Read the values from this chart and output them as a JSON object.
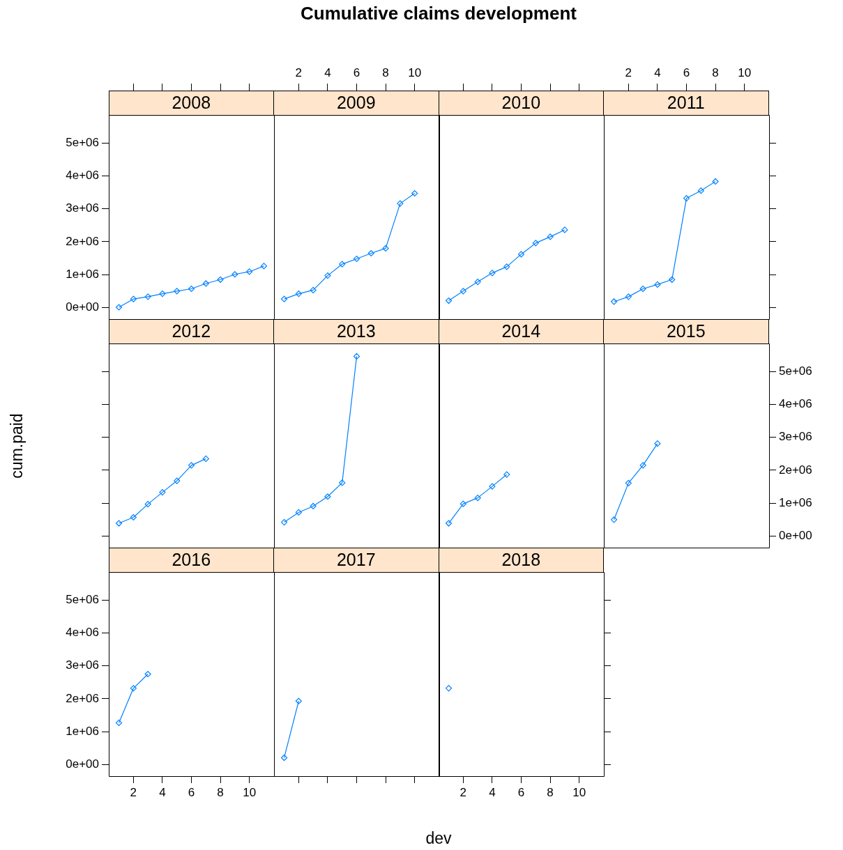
{
  "chart_data": [
    {
      "type": "line",
      "title": "2008",
      "annotations": [
        "Cumulative claims development"
      ],
      "x": [
        1,
        2,
        3,
        4,
        5,
        6,
        7,
        8,
        9,
        10,
        11
      ],
      "values": [
        10000,
        260000,
        330000,
        420000,
        500000,
        570000,
        730000,
        850000,
        1010000,
        1090000,
        1260000
      ],
      "color": "#0080ff",
      "marker": "diamond",
      "xlim": [
        0.3,
        11.7
      ],
      "xticks": [
        {
          "value": 2,
          "label": null
        },
        {
          "value": 4,
          "label": null
        },
        {
          "value": 6,
          "label": null
        },
        {
          "value": 8,
          "label": null
        },
        {
          "value": 10,
          "label": null
        }
      ],
      "ylim": [
        -350000,
        5850000
      ],
      "yticks": [
        {
          "value": 0,
          "label": "0e+00"
        },
        {
          "value": 1000000,
          "label": "1e+06"
        },
        {
          "value": 2000000,
          "label": "2e+06"
        },
        {
          "value": 3000000,
          "label": "3e+06"
        },
        {
          "value": 4000000,
          "label": "4e+06"
        },
        {
          "value": 5000000,
          "label": "5e+06"
        }
      ],
      "tick_labels": "y"
    },
    {
      "type": "line",
      "title": "2009",
      "x": [
        1,
        2,
        3,
        4,
        5,
        6,
        7,
        8,
        9,
        10
      ],
      "values": [
        260000,
        420000,
        530000,
        970000,
        1320000,
        1480000,
        1650000,
        1800000,
        3160000,
        3470000
      ],
      "color": "#0080ff",
      "marker": "diamond",
      "xlim": [
        0.3,
        11.7
      ],
      "xticks": [
        2,
        4,
        6,
        8,
        10
      ],
      "ylim": [
        -350000,
        5850000
      ],
      "tick_labels": "x"
    },
    {
      "type": "line",
      "title": "2010",
      "x": [
        1,
        2,
        3,
        4,
        5,
        6,
        7,
        8,
        9
      ],
      "values": [
        210000,
        500000,
        780000,
        1050000,
        1240000,
        1620000,
        1960000,
        2150000,
        2360000
      ],
      "color": "#0080ff",
      "marker": "diamond",
      "xlim": [
        0.3,
        11.7
      ],
      "xticks": [
        {
          "value": 2,
          "label": null
        },
        {
          "value": 4,
          "label": null
        },
        {
          "value": 6,
          "label": null
        },
        {
          "value": 8,
          "label": null
        },
        {
          "value": 10,
          "label": null
        }
      ],
      "ylim": [
        -350000,
        5850000
      ],
      "tick_labels": false
    },
    {
      "type": "line",
      "title": "2011",
      "x": [
        1,
        2,
        3,
        4,
        5,
        6,
        7,
        8
      ],
      "values": [
        180000,
        330000,
        570000,
        700000,
        850000,
        3320000,
        3550000,
        3830000
      ],
      "color": "#0080ff",
      "marker": "diamond",
      "xlim": [
        0.3,
        11.7
      ],
      "xticks": [
        2,
        4,
        6,
        8,
        10
      ],
      "ylim": [
        -350000,
        5850000
      ],
      "yticks": [
        {
          "value": 0,
          "label": null
        },
        {
          "value": 1000000,
          "label": null
        },
        {
          "value": 2000000,
          "label": null
        },
        {
          "value": 3000000,
          "label": null
        },
        {
          "value": 4000000,
          "label": null
        },
        {
          "value": 5000000,
          "label": null
        }
      ],
      "tick_labels": "x"
    },
    {
      "type": "line",
      "title": "2012",
      "ylabel": "cum.paid",
      "x": [
        1,
        2,
        3,
        4,
        5,
        6,
        7
      ],
      "values": [
        390000,
        570000,
        970000,
        1330000,
        1680000,
        2150000,
        2350000
      ],
      "color": "#0080ff",
      "marker": "diamond",
      "xlim": [
        0.3,
        11.7
      ],
      "ylim": [
        -350000,
        5850000
      ],
      "yticks": [
        {
          "value": 0,
          "label": null
        },
        {
          "value": 1000000,
          "label": null
        },
        {
          "value": 2000000,
          "label": null
        },
        {
          "value": 3000000,
          "label": null
        },
        {
          "value": 4000000,
          "label": null
        },
        {
          "value": 5000000,
          "label": null
        }
      ],
      "tick_labels": false
    },
    {
      "type": "line",
      "title": "2013",
      "x": [
        1,
        2,
        3,
        4,
        5,
        6
      ],
      "values": [
        420000,
        720000,
        910000,
        1200000,
        1620000,
        5460000
      ],
      "color": "#0080ff",
      "marker": "diamond",
      "xlim": [
        0.3,
        11.7
      ],
      "ylim": [
        -350000,
        5850000
      ],
      "tick_labels": false
    },
    {
      "type": "line",
      "title": "2014",
      "x": [
        1,
        2,
        3,
        4,
        5
      ],
      "values": [
        390000,
        980000,
        1160000,
        1510000,
        1870000
      ],
      "color": "#0080ff",
      "marker": "diamond",
      "xlim": [
        0.3,
        11.7
      ],
      "ylim": [
        -350000,
        5850000
      ],
      "tick_labels": false
    },
    {
      "type": "line",
      "title": "2015",
      "x": [
        1,
        2,
        3,
        4
      ],
      "values": [
        500000,
        1610000,
        2150000,
        2810000
      ],
      "color": "#0080ff",
      "marker": "diamond",
      "xlim": [
        0.3,
        11.7
      ],
      "ylim": [
        -350000,
        5850000
      ],
      "yticks": [
        {
          "value": 0,
          "label": "0e+00"
        },
        {
          "value": 1000000,
          "label": "1e+06"
        },
        {
          "value": 2000000,
          "label": "2e+06"
        },
        {
          "value": 3000000,
          "label": "3e+06"
        },
        {
          "value": 4000000,
          "label": "4e+06"
        },
        {
          "value": 5000000,
          "label": "5e+06"
        }
      ],
      "tick_labels": "y"
    },
    {
      "type": "line",
      "title": "2016",
      "x": [
        1,
        2,
        3
      ],
      "values": [
        1270000,
        2320000,
        2750000
      ],
      "color": "#0080ff",
      "marker": "diamond",
      "xlim": [
        0.3,
        11.7
      ],
      "xticks": [
        2,
        4,
        6,
        8,
        10
      ],
      "ylim": [
        -350000,
        5850000
      ],
      "yticks": [
        {
          "value": 0,
          "label": "0e+00"
        },
        {
          "value": 1000000,
          "label": "1e+06"
        },
        {
          "value": 2000000,
          "label": "2e+06"
        },
        {
          "value": 3000000,
          "label": "3e+06"
        },
        {
          "value": 4000000,
          "label": "4e+06"
        },
        {
          "value": 5000000,
          "label": "5e+06"
        }
      ]
    },
    {
      "type": "line",
      "title": "2017",
      "xlabel": "dev",
      "x": [
        1,
        2
      ],
      "values": [
        210000,
        1930000
      ],
      "color": "#0080ff",
      "marker": "diamond",
      "xlim": [
        0.3,
        11.7
      ],
      "xticks": [
        {
          "value": 2,
          "label": null
        },
        {
          "value": 4,
          "label": null
        },
        {
          "value": 6,
          "label": null
        },
        {
          "value": 8,
          "label": null
        },
        {
          "value": 10,
          "label": null
        }
      ],
      "ylim": [
        -350000,
        5850000
      ],
      "tick_labels": false
    },
    {
      "type": "line",
      "title": "2018",
      "x": [
        1
      ],
      "values": [
        2320000
      ],
      "color": "#0080ff",
      "marker": "diamond",
      "xlim": [
        0.3,
        11.7
      ],
      "xticks": [
        2,
        4,
        6,
        8,
        10
      ],
      "ylim": [
        -350000,
        5850000
      ],
      "yticks": [
        {
          "value": 0,
          "label": null
        },
        {
          "value": 1000000,
          "label": null
        },
        {
          "value": 2000000,
          "label": null
        },
        {
          "value": 3000000,
          "label": null
        },
        {
          "value": 4000000,
          "label": null
        },
        {
          "value": 5000000,
          "label": null
        }
      ],
      "tick_labels": "x"
    }
  ]
}
